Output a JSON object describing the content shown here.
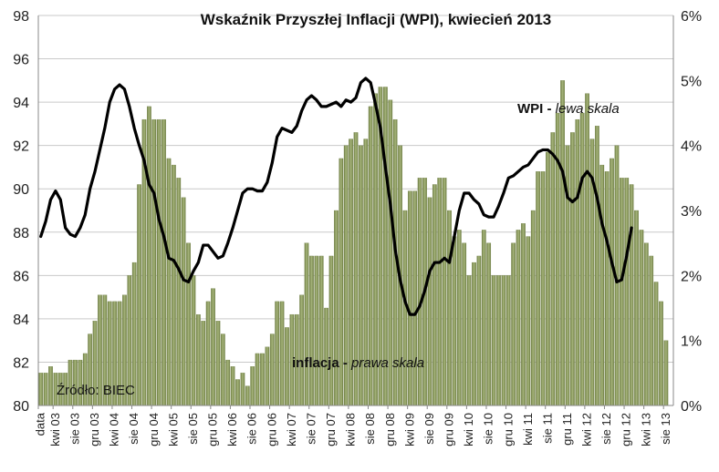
{
  "chart_data": {
    "type": "bar+line",
    "title": "Wskaźnik  Przyszłej Inflacji (WPI), kwiecień 2013",
    "source_note": "Źródło: BIEC",
    "left_axis": {
      "min": 80,
      "max": 98,
      "step": 2,
      "ticks": [
        "80",
        "82",
        "84",
        "86",
        "88",
        "90",
        "92",
        "94",
        "96",
        "98"
      ]
    },
    "right_axis": {
      "min": 0,
      "max": 6,
      "step": 1,
      "ticks": [
        "0%",
        "1%",
        "2%",
        "3%",
        "4%",
        "5%",
        "6%"
      ]
    },
    "x_ticks": [
      "data",
      "kwi 03",
      "sie 03",
      "gru 03",
      "kwi 04",
      "sie 04",
      "gru 04",
      "kwi 05",
      "sie 05",
      "gru 05",
      "kwi 06",
      "sie 06",
      "gru 06",
      "kwi 07",
      "sie 07",
      "gru 07",
      "kwi 08",
      "sie 08",
      "gru 08",
      "kwi 09",
      "sie 09",
      "gru 09",
      "kwi 10",
      "sie 10",
      "gru 10",
      "kwi 11",
      "sie 11",
      "gru 11",
      "kwi 12",
      "sie 12",
      "gru 12",
      "kwi 13",
      "sie 13"
    ],
    "series": [
      {
        "name": "inflacja",
        "axis": "right",
        "kind": "bar",
        "color": "#8a9a5b",
        "label_bold": "inflacja - ",
        "label_italic": "prawa skala",
        "values": [
          0.5,
          0.5,
          0.6,
          0.5,
          0.5,
          0.5,
          0.7,
          0.7,
          0.7,
          0.8,
          1.1,
          1.3,
          1.7,
          1.7,
          1.6,
          1.6,
          1.6,
          1.7,
          2.0,
          2.2,
          3.4,
          4.4,
          4.6,
          4.4,
          4.4,
          4.4,
          3.8,
          3.7,
          3.5,
          3.2,
          2.5,
          2.0,
          1.4,
          1.3,
          1.6,
          1.8,
          1.3,
          1.1,
          0.7,
          0.6,
          0.4,
          0.5,
          0.3,
          0.6,
          0.8,
          0.8,
          0.9,
          1.1,
          1.6,
          1.6,
          1.2,
          1.4,
          1.4,
          1.7,
          2.5,
          2.3,
          2.3,
          2.3,
          1.5,
          2.3,
          3.0,
          3.8,
          4.0,
          4.1,
          4.2,
          4.0,
          4.1,
          4.6,
          4.8,
          4.9,
          4.9,
          4.7,
          4.4,
          4.0,
          3.0,
          3.3,
          3.3,
          3.5,
          3.5,
          3.2,
          3.4,
          3.5,
          3.5,
          3.0,
          2.6,
          2.7,
          2.5,
          2.0,
          2.2,
          2.3,
          2.7,
          2.5,
          2.0,
          2.0,
          2.0,
          2.0,
          2.5,
          2.7,
          2.8,
          2.6,
          3.0,
          3.6,
          3.6,
          3.9,
          4.2,
          4.5,
          5.0,
          4.0,
          4.2,
          4.4,
          4.5,
          4.8,
          4.1,
          4.3,
          3.7,
          3.6,
          3.8,
          4.0,
          3.5,
          3.5,
          3.4,
          3.0,
          2.7,
          2.5,
          2.3,
          1.9,
          1.6,
          1.0
        ],
        "outline_points": [
          0.4,
          0.4,
          0.55
        ]
      },
      {
        "name": "WPI",
        "axis": "left",
        "kind": "line",
        "color": "#000000",
        "label_bold": "WPI - ",
        "label_italic": "lewa skala",
        "values": [
          87.8,
          88.5,
          89.5,
          89.9,
          89.5,
          88.2,
          87.9,
          87.8,
          88.2,
          88.8,
          90,
          90.8,
          91.8,
          92.8,
          94,
          94.6,
          94.8,
          94.6,
          93.8,
          92.8,
          92,
          91.3,
          90.2,
          89.8,
          88.6,
          87.8,
          86.8,
          86.7,
          86.3,
          85.8,
          85.7,
          86.2,
          86.6,
          87.4,
          87.4,
          87.1,
          86.8,
          86.9,
          87.5,
          88.2,
          89,
          89.8,
          90,
          90,
          89.9,
          89.9,
          90.3,
          91.2,
          92.4,
          92.8,
          92.7,
          92.6,
          92.9,
          93.6,
          94.1,
          94.3,
          94.1,
          93.8,
          93.8,
          93.9,
          94,
          93.8,
          94.1,
          94,
          94.2,
          94.9,
          95.1,
          94.9,
          93.9,
          92.8,
          91,
          89.3,
          87.2,
          85.8,
          84.8,
          84.2,
          84.2,
          84.6,
          85.3,
          86.2,
          86.6,
          86.6,
          86.8,
          86.6,
          87.8,
          89,
          89.8,
          89.8,
          89.5,
          89.3,
          88.8,
          88.7,
          88.7,
          89.2,
          89.8,
          90.5,
          90.6,
          90.8,
          91,
          91.1,
          91.4,
          91.7,
          91.8,
          91.8,
          91.6,
          91.3,
          90.8,
          89.6,
          89.4,
          89.6,
          90.5,
          90.8,
          90.5,
          89.6,
          88.4,
          87.6,
          86.6,
          85.7,
          85.8,
          86.9,
          88.2
        ]
      }
    ],
    "grid": "horizontal"
  }
}
